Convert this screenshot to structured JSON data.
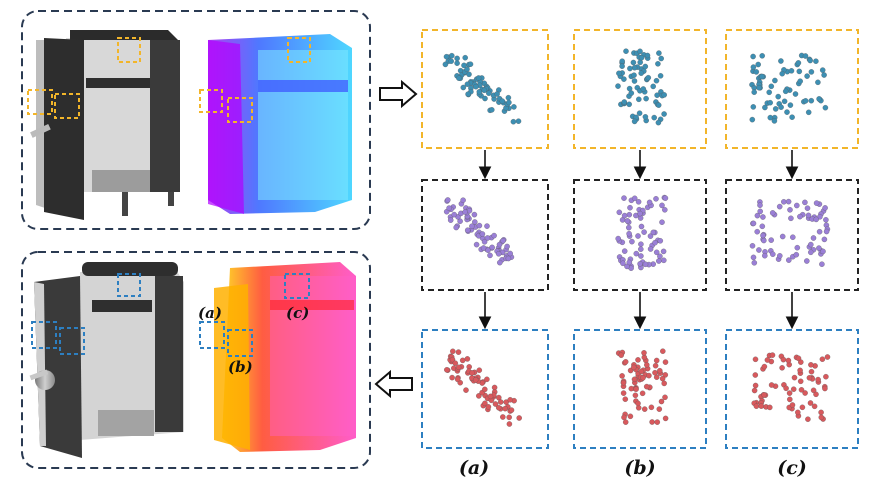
{
  "labels": {
    "a": "(a)",
    "b": "(b)",
    "c": "(c)"
  },
  "colors": {
    "yellow_box": "#f2b52a",
    "black_box": "#222222",
    "blue_box": "#2d7fc1",
    "panel_border": "#2a3a52",
    "cyan_points": "#3d8fb3",
    "purple_points": "#9a7fd6",
    "red_points": "#d8595d",
    "arrow": "#111111"
  },
  "icons": [
    "arrow-right-icon",
    "arrow-left-icon",
    "arrow-down-icon"
  ]
}
